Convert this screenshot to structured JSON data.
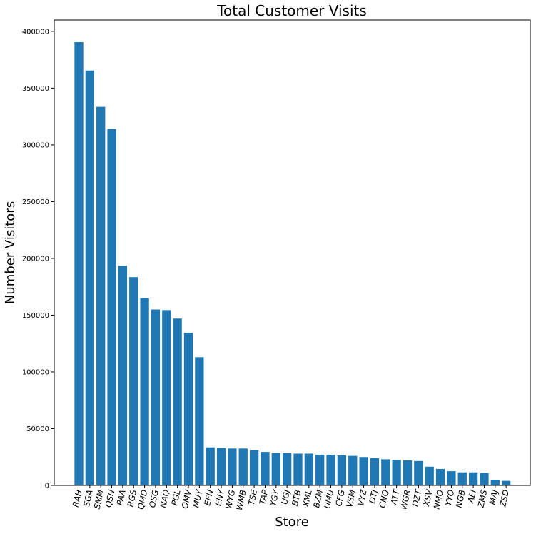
{
  "chart_data": {
    "type": "bar",
    "title": "Total Customer Visits",
    "xlabel": "Store",
    "ylabel": "Number Visitors",
    "ylim": [
      0,
      410000
    ],
    "yticks": [
      0,
      50000,
      100000,
      150000,
      200000,
      250000,
      300000,
      350000,
      400000
    ],
    "ytick_labels": [
      "0",
      "50000",
      "100000",
      "150000",
      "200000",
      "250000",
      "300000",
      "350000",
      "400000"
    ],
    "grid": false,
    "bar_color": "#1f77b4",
    "categories": [
      "RAH",
      "SGA",
      "SMM",
      "QSN",
      "PAA",
      "RGS",
      "QMD",
      "OSG",
      "NAQ",
      "PGL",
      "OMV",
      "MUY",
      "EFN",
      "ENY",
      "WYG",
      "WMB",
      "TSE",
      "TAP",
      "YGY",
      "UGJ",
      "BTB",
      "XML",
      "BZM",
      "UMU",
      "CFG",
      "VSM",
      "VYZ",
      "DTJ",
      "CNQ",
      "ATT",
      "WGR",
      "DZT",
      "XSV",
      "NMO",
      "YYO",
      "NGB",
      "AEI",
      "ZMS",
      "MAJ",
      "ZSD"
    ],
    "values": [
      390500,
      365500,
      333500,
      314000,
      193500,
      183500,
      165000,
      155000,
      154500,
      147000,
      134500,
      113000,
      33500,
      33000,
      32500,
      32500,
      31000,
      29500,
      28500,
      28500,
      28000,
      28000,
      27000,
      27000,
      26500,
      26000,
      25000,
      24000,
      23000,
      22500,
      22000,
      21500,
      16500,
      14500,
      12500,
      11500,
      11500,
      11000,
      5000,
      4000
    ]
  }
}
